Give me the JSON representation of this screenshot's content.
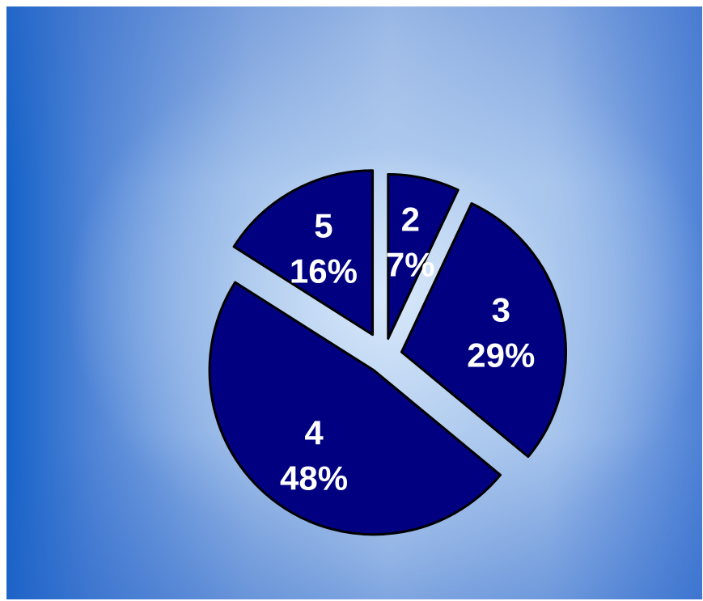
{
  "chart_data": {
    "type": "pie",
    "slices": [
      {
        "category": "2",
        "value": 7,
        "label_line1": "2",
        "label_line2": "7%"
      },
      {
        "category": "3",
        "value": 29,
        "label_line1": "3",
        "label_line2": "29%"
      },
      {
        "category": "4",
        "value": 48,
        "label_line1": "4",
        "label_line2": "48%"
      },
      {
        "category": "5",
        "value": 16,
        "label_line1": "5",
        "label_line2": "16%"
      }
    ],
    "exploded": true,
    "start_angle_deg": 0,
    "direction": "clockwise",
    "colors": {
      "slice_fill": "#000080",
      "slice_stroke": "#000000",
      "label_text": "#ffffff"
    }
  }
}
